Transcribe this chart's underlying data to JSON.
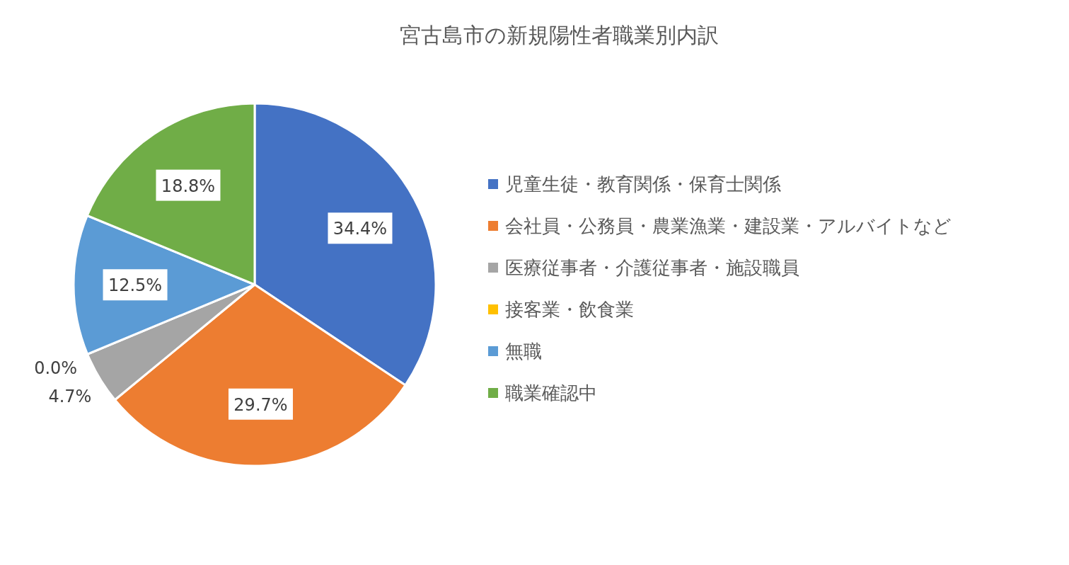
{
  "chart_data": {
    "type": "pie",
    "title": "宮古島市の新規陽性者職業別内訳",
    "categories": [
      "児童生徒・教育関係・保育士関係",
      "会社員・公務員・農業漁業・建設業・アルバイトなど",
      "医療従事者・介護従事者・施設職員",
      "接客業・飲食業",
      "無職",
      "職業確認中"
    ],
    "values": [
      34.4,
      29.7,
      4.7,
      0.0,
      12.5,
      18.8
    ],
    "value_labels": [
      "34.4%",
      "29.7%",
      "4.7%",
      "0.0%",
      "12.5%",
      "18.8%"
    ],
    "colors": [
      "#4472c4",
      "#ed7d31",
      "#a5a5a5",
      "#ffc000",
      "#5b9bd5",
      "#70ad47"
    ],
    "legend": "right"
  }
}
